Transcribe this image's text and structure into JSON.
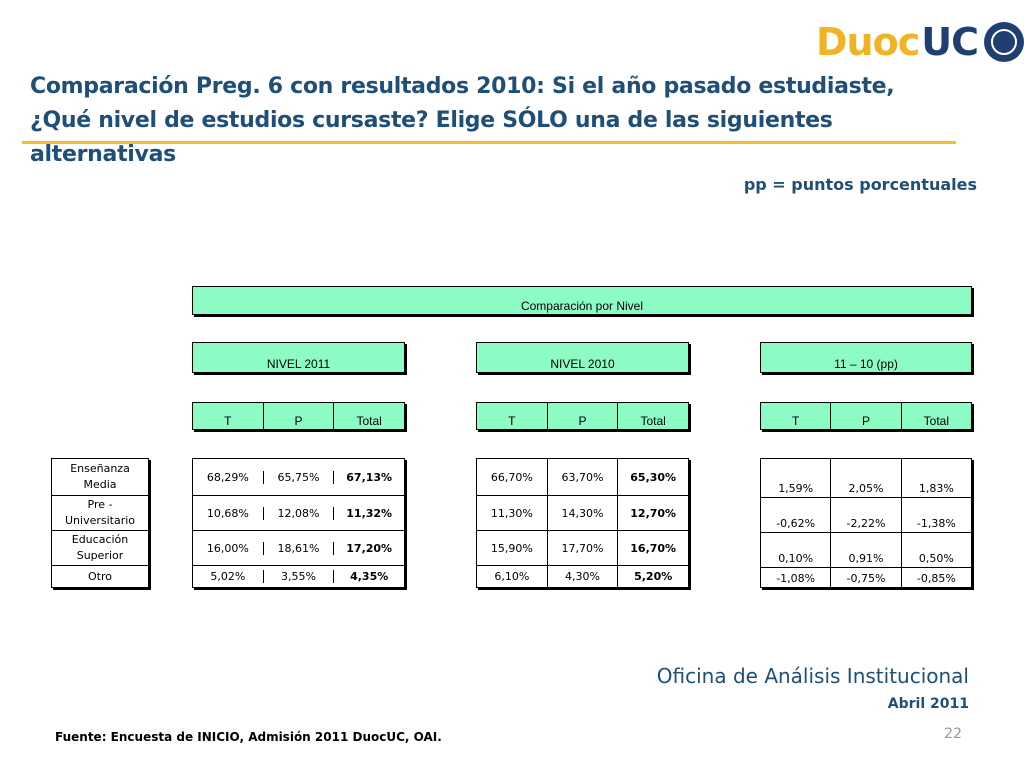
{
  "logo": {
    "duoc": "Duoc",
    "uc": "UC"
  },
  "title": {
    "line1": "Comparación Preg. 6 con resultados 2010: Si el año pasado estudiaste,",
    "line2": "¿Qué nivel de estudios cursaste? Elige SÓLO una de las siguientes alternativas"
  },
  "pp_note": "pp = puntos porcentuales",
  "table": {
    "caption": "Comparación por Nivel",
    "group_headers": [
      "NIVEL 2011",
      "NIVEL 2010",
      "11 – 10 (pp)"
    ],
    "col_headers": [
      "T",
      "P",
      "Total"
    ],
    "row_labels": [
      "Enseñanza Media",
      "Pre - Universitario",
      "Educación Superior",
      "Otro"
    ],
    "nivel_2011": [
      [
        "68,29%",
        "65,75%",
        "67,13%"
      ],
      [
        "10,68%",
        "12,08%",
        "11,32%"
      ],
      [
        "16,00%",
        "18,61%",
        "17,20%"
      ],
      [
        "5,02%",
        "3,55%",
        "4,35%"
      ]
    ],
    "nivel_2010": [
      [
        "66,70%",
        "63,70%",
        "65,30%"
      ],
      [
        "11,30%",
        "14,30%",
        "12,70%"
      ],
      [
        "15,90%",
        "17,70%",
        "16,70%"
      ],
      [
        "6,10%",
        "4,30%",
        "5,20%"
      ]
    ],
    "diff_pp": [
      [
        "1,59%",
        "2,05%",
        "1,83%"
      ],
      [
        "-0,62%",
        "-2,22%",
        "-1,38%"
      ],
      [
        "0,10%",
        "0,91%",
        "0,50%"
      ],
      [
        "-1,08%",
        "-0,75%",
        "-0,85%"
      ]
    ]
  },
  "footer": {
    "org": "Oficina de Análisis Institucional",
    "date": "Abril 2011",
    "source": "Fuente: Encuesta de INICIO, Admisión 2011 DuocUC, OAI.",
    "page": "22"
  }
}
